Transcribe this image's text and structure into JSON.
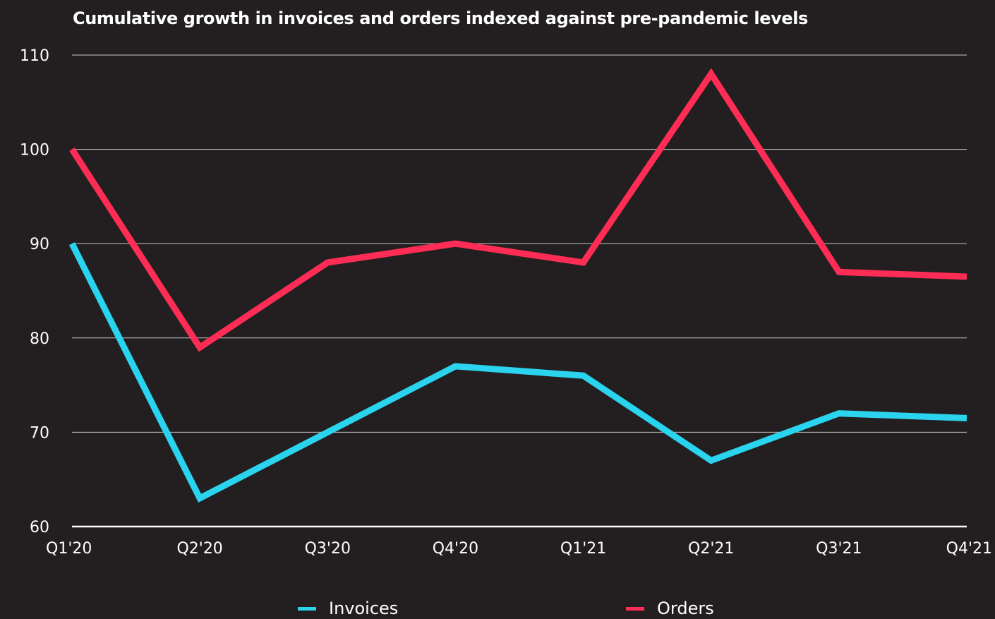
{
  "chart_data": {
    "type": "line",
    "title": "Cumulative growth in invoices and orders indexed against pre-pandemic levels",
    "xlabel": "",
    "ylabel": "",
    "categories": [
      "Q1'20",
      "Q2'20",
      "Q3'20",
      "Q4'20",
      "Q1'21",
      "Q2'21",
      "Q3'21",
      "Q4'21"
    ],
    "ylim": [
      60,
      110
    ],
    "yticks": [
      60,
      70,
      80,
      90,
      100,
      110
    ],
    "grid": true,
    "legend_position": "bottom",
    "series": [
      {
        "name": "Invoices",
        "color": "#2ad4ee",
        "values": [
          90,
          63,
          70,
          77,
          76,
          67,
          72,
          71.5
        ]
      },
      {
        "name": "Orders",
        "color": "#ff2d55",
        "values": [
          100,
          79,
          88,
          90,
          88,
          108,
          87,
          86.5
        ]
      }
    ]
  },
  "colors": {
    "background": "#231f20",
    "gridline": "#c8c8c8",
    "axis": "#ffffff",
    "text": "#ffffff"
  }
}
